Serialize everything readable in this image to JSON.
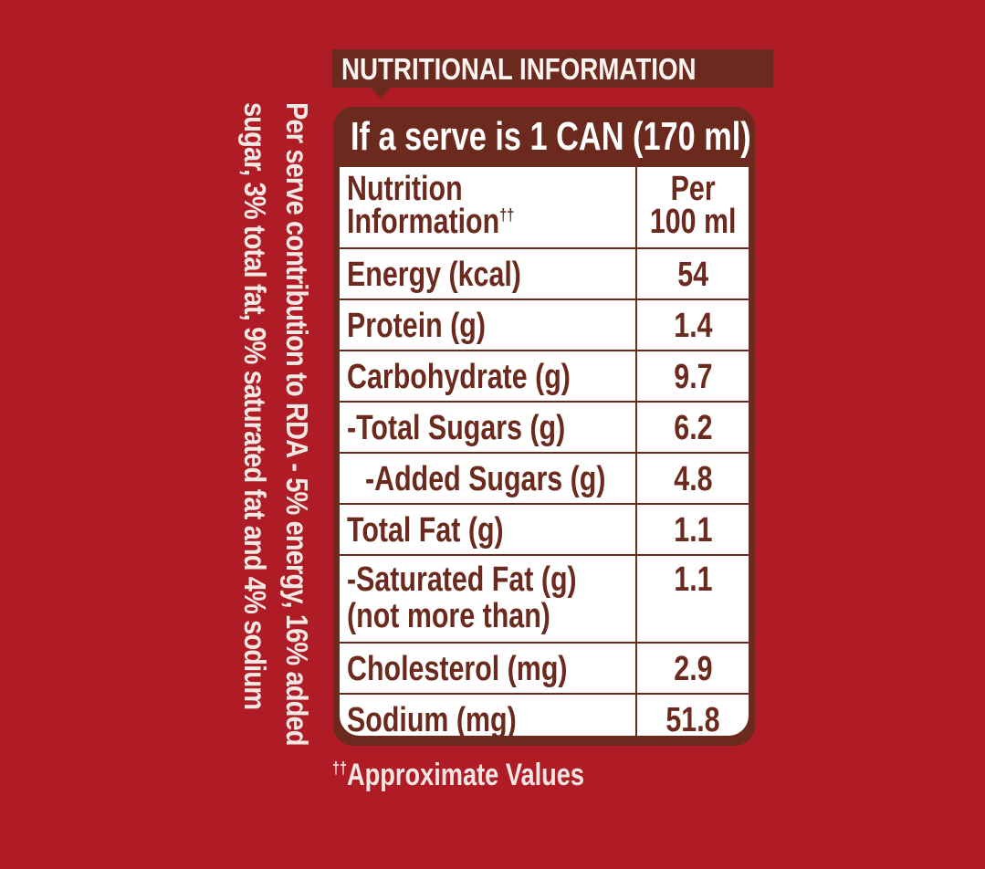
{
  "side_note": {
    "line1": "Per serve contribution to RDA - 5% energy, 16% added",
    "line2": "sugar, 3% total fat, 9% saturated fat and 4% sodium"
  },
  "header": {
    "title": "NUTRITIONAL INFORMATION"
  },
  "table": {
    "serve_title": "If a serve is 1 CAN (170 ml)",
    "head": {
      "label_line1": "Nutrition",
      "label_line2": "Information",
      "label_mark": "††",
      "value_line1": "Per",
      "value_line2": "100 ml"
    },
    "rows": [
      {
        "label": "Energy (kcal)",
        "value": "54"
      },
      {
        "label": "Protein (g)",
        "value": "1.4"
      },
      {
        "label": "Carbohydrate (g)",
        "value": "9.7"
      },
      {
        "label": "-Total Sugars (g)",
        "value": "6.2"
      },
      {
        "label": "-Added Sugars (g)",
        "value": "4.8"
      },
      {
        "label": "Total Fat (g)",
        "value": "1.1"
      },
      {
        "label": "-Saturated Fat (g)",
        "label_line2": "(not more than)",
        "value": "1.1"
      },
      {
        "label": "Cholesterol (mg)",
        "value": "2.9"
      },
      {
        "label": "Sodium (mg)",
        "value": "51.8"
      }
    ]
  },
  "footnote": {
    "mark": "††",
    "text": "Approximate Values"
  }
}
